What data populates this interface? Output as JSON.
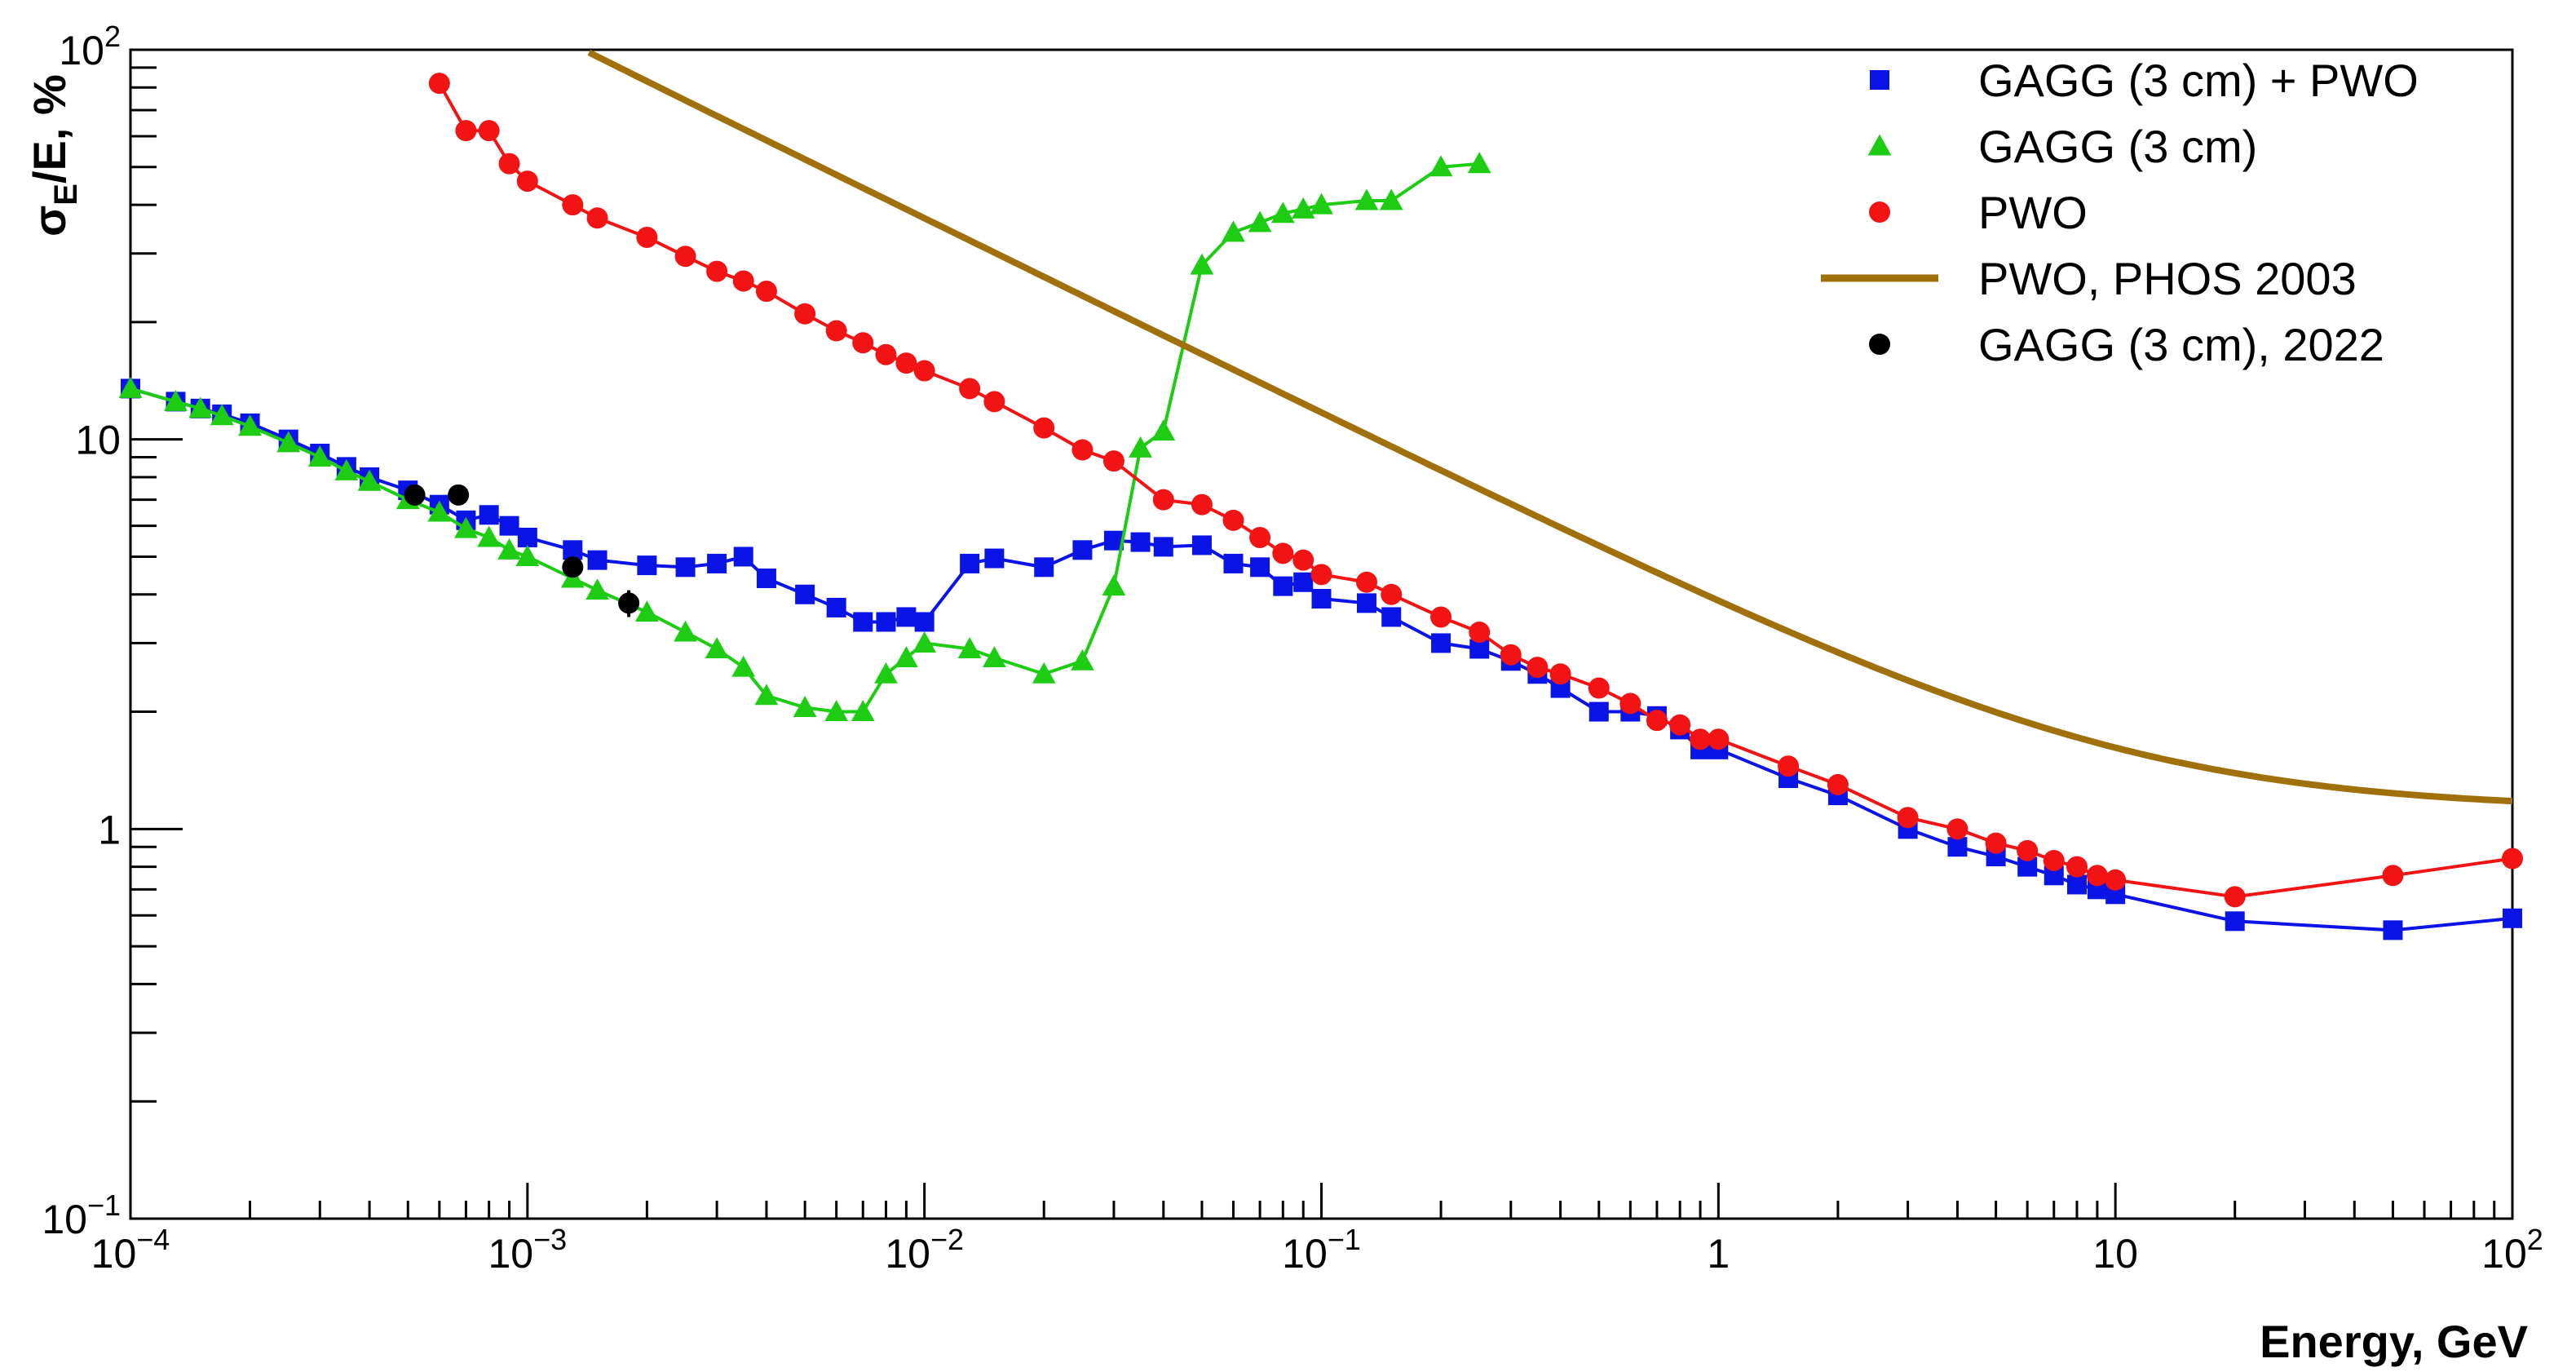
{
  "chart_data": {
    "type": "scatter",
    "title": "",
    "xlabel": "Energy, GeV",
    "ylabel_parts": {
      "sigma": "σ",
      "sub": "E",
      "rest": "/E, %"
    },
    "xscale": "log",
    "yscale": "log",
    "xlim": [
      0.0001,
      100
    ],
    "ylim": [
      0.1,
      100
    ],
    "grid": false,
    "legend_position": "top-right",
    "x_tick_labels": [
      {
        "value": 0.0001,
        "base": "10",
        "exp": "−4"
      },
      {
        "value": 0.001,
        "base": "10",
        "exp": "−3"
      },
      {
        "value": 0.01,
        "base": "10",
        "exp": "−2"
      },
      {
        "value": 0.1,
        "base": "10",
        "exp": "−1"
      },
      {
        "value": 1,
        "base": "1",
        "exp": ""
      },
      {
        "value": 10,
        "base": "10",
        "exp": ""
      },
      {
        "value": 100,
        "base": "10",
        "exp": "2"
      }
    ],
    "y_tick_labels": [
      {
        "value": 0.1,
        "base": "10",
        "exp": "−1"
      },
      {
        "value": 1,
        "base": "1",
        "exp": ""
      },
      {
        "value": 10,
        "base": "10",
        "exp": ""
      },
      {
        "value": 100,
        "base": "10",
        "exp": "2"
      }
    ],
    "series": [
      {
        "name": "GAGG (3 cm) + PWO",
        "color": "#0a14e6",
        "marker": "square",
        "line": true,
        "x": [
          0.0001,
          0.00013,
          0.00015,
          0.00017,
          0.0002,
          0.00025,
          0.0003,
          0.00035,
          0.0004,
          0.0005,
          0.0006,
          0.0007,
          0.0008,
          0.0009,
          0.001,
          0.0013,
          0.0015,
          0.002,
          0.0025,
          0.003,
          0.0035,
          0.004,
          0.005,
          0.006,
          0.007,
          0.008,
          0.009,
          0.01,
          0.013,
          0.015,
          0.02,
          0.025,
          0.03,
          0.035,
          0.04,
          0.05,
          0.06,
          0.07,
          0.08,
          0.09,
          0.1,
          0.13,
          0.15,
          0.2,
          0.25,
          0.3,
          0.35,
          0.4,
          0.5,
          0.6,
          0.7,
          0.8,
          0.9,
          1.0,
          1.5,
          2,
          3,
          4,
          5,
          6,
          7,
          8,
          9,
          10,
          20,
          50,
          100
        ],
        "y": [
          13.5,
          12.5,
          12.0,
          11.6,
          11.0,
          10.0,
          9.2,
          8.5,
          8.0,
          7.4,
          6.8,
          6.2,
          6.4,
          6.0,
          5.6,
          5.2,
          4.9,
          4.75,
          4.7,
          4.8,
          5.0,
          4.4,
          4.0,
          3.7,
          3.4,
          3.4,
          3.5,
          3.4,
          4.8,
          4.95,
          4.7,
          5.2,
          5.5,
          5.45,
          5.3,
          5.35,
          4.8,
          4.7,
          4.2,
          4.3,
          3.9,
          3.8,
          3.5,
          3.0,
          2.9,
          2.7,
          2.5,
          2.3,
          2.0,
          2.0,
          1.95,
          1.8,
          1.6,
          1.6,
          1.35,
          1.22,
          1.0,
          0.9,
          0.85,
          0.8,
          0.76,
          0.72,
          0.7,
          0.68,
          0.58,
          0.55,
          0.59
        ]
      },
      {
        "name": "GAGG (3 cm)",
        "color": "#1ecc14",
        "marker": "triangle",
        "line": true,
        "x": [
          0.0001,
          0.00013,
          0.00015,
          0.00017,
          0.0002,
          0.00025,
          0.0003,
          0.00035,
          0.0004,
          0.0005,
          0.0006,
          0.0007,
          0.0008,
          0.0009,
          0.001,
          0.0013,
          0.0015,
          0.002,
          0.0025,
          0.003,
          0.0035,
          0.004,
          0.005,
          0.006,
          0.007,
          0.008,
          0.009,
          0.01,
          0.013,
          0.015,
          0.02,
          0.025,
          0.03,
          0.035,
          0.04,
          0.05,
          0.06,
          0.07,
          0.08,
          0.09,
          0.1,
          0.13,
          0.15,
          0.2,
          0.25
        ],
        "y": [
          13.5,
          12.5,
          12.0,
          11.5,
          10.8,
          9.8,
          9.0,
          8.3,
          7.8,
          7.0,
          6.5,
          5.9,
          5.6,
          5.2,
          5.0,
          4.4,
          4.1,
          3.6,
          3.2,
          2.9,
          2.6,
          2.2,
          2.05,
          2.0,
          2.0,
          2.5,
          2.75,
          3.0,
          2.9,
          2.75,
          2.5,
          2.7,
          4.2,
          9.5,
          10.5,
          28.0,
          34.0,
          36.0,
          38.0,
          39.0,
          40.0,
          41.0,
          41.0,
          50.0,
          51.0
        ]
      },
      {
        "name": "PWO",
        "color": "#f21414",
        "marker": "circle",
        "line": true,
        "x": [
          0.0006,
          0.0007,
          0.0008,
          0.0009,
          0.001,
          0.0013,
          0.0015,
          0.002,
          0.0025,
          0.003,
          0.0035,
          0.004,
          0.005,
          0.006,
          0.007,
          0.008,
          0.009,
          0.01,
          0.013,
          0.015,
          0.02,
          0.025,
          0.03,
          0.04,
          0.05,
          0.06,
          0.07,
          0.08,
          0.09,
          0.1,
          0.13,
          0.15,
          0.2,
          0.25,
          0.3,
          0.35,
          0.4,
          0.5,
          0.6,
          0.7,
          0.8,
          0.9,
          1.0,
          1.5,
          2,
          3,
          4,
          5,
          6,
          7,
          8,
          9,
          10,
          20,
          50,
          100
        ],
        "y": [
          82.0,
          62.0,
          62.0,
          51.0,
          46.0,
          40.0,
          37.0,
          33.0,
          29.5,
          27.0,
          25.5,
          24.0,
          21.0,
          19.0,
          17.7,
          16.5,
          15.7,
          15.0,
          13.5,
          12.5,
          10.7,
          9.4,
          8.8,
          7.0,
          6.8,
          6.2,
          5.6,
          5.1,
          4.9,
          4.5,
          4.3,
          4.0,
          3.5,
          3.2,
          2.8,
          2.6,
          2.5,
          2.3,
          2.1,
          1.9,
          1.85,
          1.7,
          1.7,
          1.45,
          1.3,
          1.07,
          1.0,
          0.92,
          0.88,
          0.83,
          0.8,
          0.76,
          0.74,
          0.67,
          0.76,
          0.84
        ]
      },
      {
        "name": "PWO, PHOS 2003",
        "color": "#a0700d",
        "marker": "none",
        "line": true,
        "function": "sqrt((a/E)^2 + (b/sqrt(E))^2 + c^2)",
        "params": {
          "a": 0.0179,
          "b": 3.69,
          "c": 1.12
        }
      },
      {
        "name": "GAGG (3 cm), 2022",
        "color": "#000000",
        "marker": "circle",
        "line": false,
        "x": [
          0.00052,
          0.00067,
          0.0013,
          0.0018
        ],
        "y": [
          7.2,
          7.2,
          4.7,
          3.8
        ],
        "y_err": [
          0,
          0,
          0.25,
          0.3
        ]
      }
    ]
  }
}
